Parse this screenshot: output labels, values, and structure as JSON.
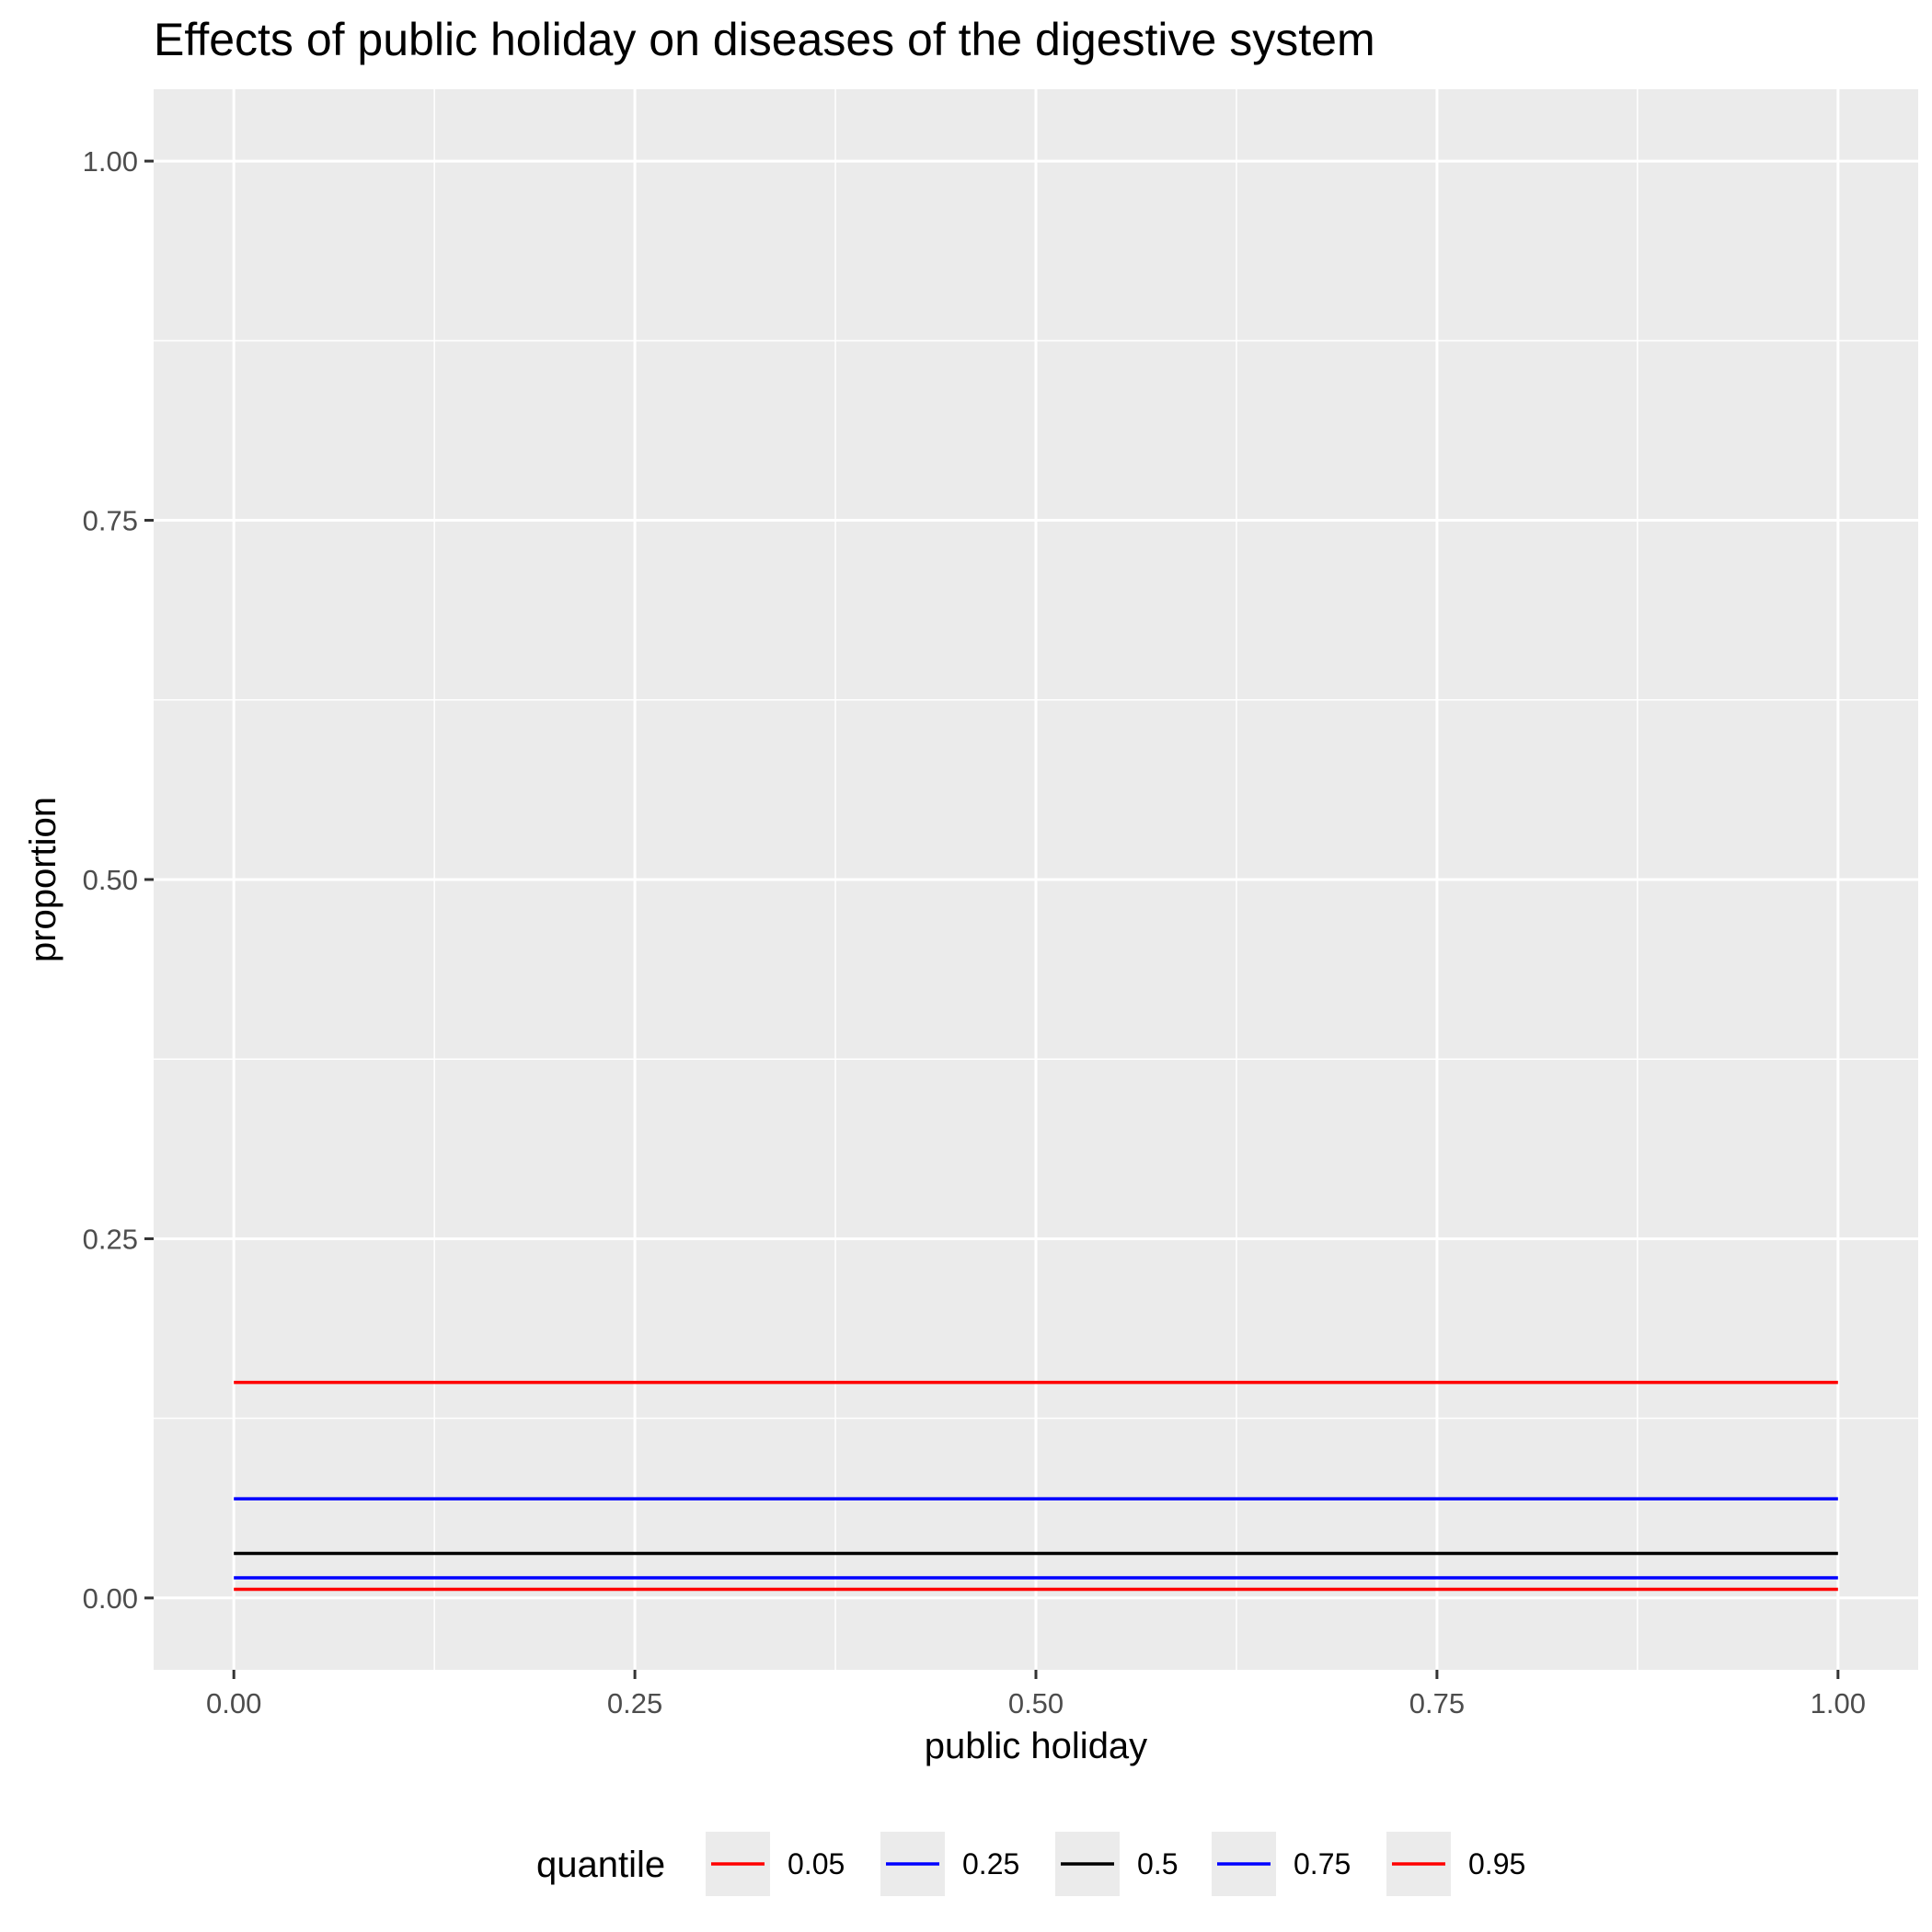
{
  "chart_data": {
    "type": "line",
    "title": "Effects of public holiday on diseases of the digestive system",
    "xlabel": "public holiday",
    "ylabel": "proportion",
    "xlim": [
      -0.05,
      1.05
    ],
    "ylim": [
      -0.05,
      1.05
    ],
    "x_ticks": [
      0,
      0.25,
      0.5,
      0.75,
      1
    ],
    "x_tick_labels": [
      "0.00",
      "0.25",
      "0.50",
      "0.75",
      "1.00"
    ],
    "y_ticks": [
      0,
      0.25,
      0.5,
      0.75,
      1
    ],
    "y_tick_labels": [
      "0.00",
      "0.25",
      "0.50",
      "0.75",
      "1.00"
    ],
    "grid": true,
    "panel_background": "#ebebeb",
    "legend": {
      "title": "quantile",
      "position": "bottom",
      "entries": [
        "0.05",
        "0.25",
        "0.5",
        "0.75",
        "0.95"
      ]
    },
    "series": [
      {
        "name": "0.05",
        "color": "#ff0000",
        "x": [
          0,
          1
        ],
        "y": [
          0.006,
          0.006
        ]
      },
      {
        "name": "0.25",
        "color": "#0000ff",
        "x": [
          0,
          1
        ],
        "y": [
          0.014,
          0.014
        ]
      },
      {
        "name": "0.5",
        "color": "#000000",
        "x": [
          0,
          1
        ],
        "y": [
          0.031,
          0.031
        ]
      },
      {
        "name": "0.75",
        "color": "#0000ff",
        "x": [
          0,
          1
        ],
        "y": [
          0.069,
          0.069
        ]
      },
      {
        "name": "0.95",
        "color": "#ff0000",
        "x": [
          0,
          1
        ],
        "y": [
          0.15,
          0.15
        ]
      }
    ]
  }
}
